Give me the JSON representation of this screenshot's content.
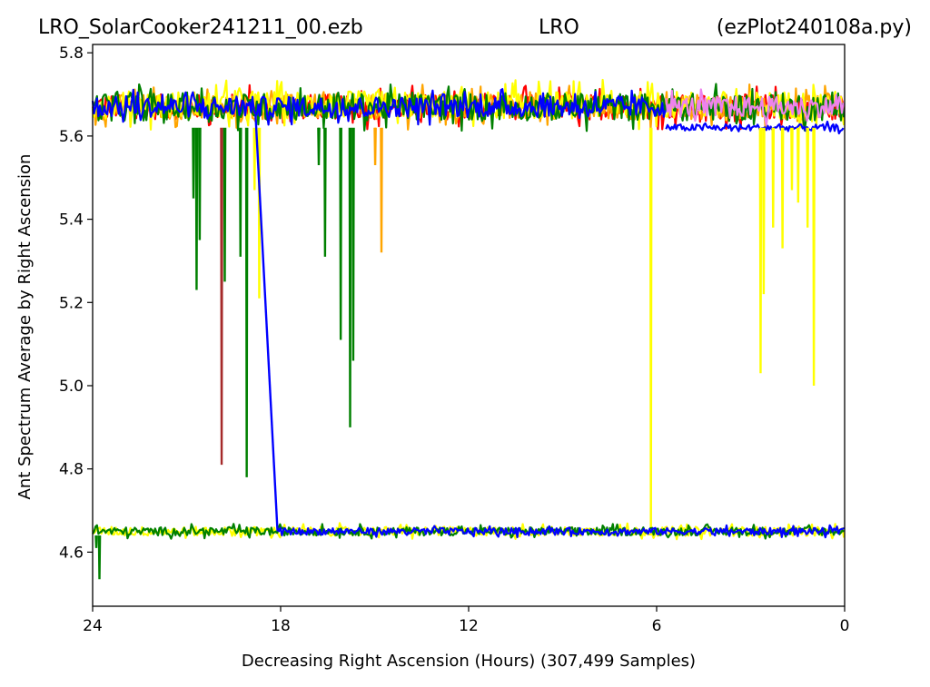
{
  "header": {
    "left": "LRO_SolarCooker241211_00.ezb",
    "center": "LRO",
    "right": "(ezPlot240108a.py)"
  },
  "chart_data": {
    "type": "line",
    "title": "",
    "xlabel": "Decreasing Right Ascension (Hours) (307,499 Samples)",
    "ylabel": "Ant Spectrum Average by Right Ascension",
    "xlim": [
      24,
      0
    ],
    "ylim": [
      4.47,
      5.82
    ],
    "x_ticks": [
      24,
      18,
      12,
      6,
      0
    ],
    "y_ticks": [
      4.6,
      4.8,
      5.0,
      5.2,
      5.4,
      5.6,
      5.8
    ],
    "y_tick_labels": [
      "4.6",
      "4.8",
      "5.0",
      "5.2",
      "5.4",
      "5.6",
      "5.8"
    ],
    "x_reversed": true,
    "grid": false,
    "legend": "none",
    "bands": [
      {
        "color": "#ff0000",
        "x_from": 24,
        "x_to": 0,
        "center": 5.67,
        "spread": 0.055
      },
      {
        "color": "#ffa500",
        "x_from": 24,
        "x_to": 0,
        "center": 5.67,
        "spread": 0.055
      },
      {
        "color": "#ffff00",
        "x_from": 24,
        "x_to": 0,
        "center": 5.675,
        "spread": 0.06
      },
      {
        "color": "#ffff00",
        "x_from": 24,
        "x_to": 0,
        "center": 4.65,
        "spread": 0.02
      },
      {
        "color": "#008000",
        "x_from": 24,
        "x_to": 0,
        "center": 5.67,
        "spread": 0.06
      },
      {
        "color": "#008000",
        "x_from": 24,
        "x_to": 0,
        "center": 4.65,
        "spread": 0.018
      },
      {
        "color": "#0000ff",
        "x_from": 24,
        "x_to": 5.7,
        "center": 5.67,
        "spread": 0.045
      },
      {
        "color": "#ee82ee",
        "x_from": 5.7,
        "x_to": 0,
        "center": 5.67,
        "spread": 0.045
      },
      {
        "color": "#0000ff",
        "x_from": 5.7,
        "x_to": 0,
        "center": 5.62,
        "spread": 0.015
      },
      {
        "color": "#0000ff",
        "x_from": 18.1,
        "x_to": 0,
        "center": 4.65,
        "spread": 0.015
      }
    ],
    "dips": [
      {
        "color": "#008000",
        "x": 20.7,
        "y_top": 5.62,
        "y_min": 5.23
      },
      {
        "color": "#008000",
        "x": 20.8,
        "y_top": 5.62,
        "y_min": 5.45
      },
      {
        "color": "#008000",
        "x": 20.6,
        "y_top": 5.62,
        "y_min": 5.35
      },
      {
        "color": "#a52a2a",
        "x": 19.9,
        "y_top": 5.62,
        "y_min": 4.81
      },
      {
        "color": "#008000",
        "x": 19.8,
        "y_top": 5.62,
        "y_min": 5.25
      },
      {
        "color": "#008000",
        "x": 19.3,
        "y_top": 5.62,
        "y_min": 5.31
      },
      {
        "color": "#008000",
        "x": 19.1,
        "y_top": 5.62,
        "y_min": 4.78
      },
      {
        "color": "#ffff00",
        "x": 18.7,
        "y_top": 5.62,
        "y_min": 5.21
      },
      {
        "color": "#ffff00",
        "x": 18.85,
        "y_top": 5.62,
        "y_min": 5.47
      },
      {
        "color": "#008000",
        "x": 16.8,
        "y_top": 5.62,
        "y_min": 5.53
      },
      {
        "color": "#008000",
        "x": 16.6,
        "y_top": 5.62,
        "y_min": 5.31
      },
      {
        "color": "#008000",
        "x": 16.1,
        "y_top": 5.62,
        "y_min": 5.11
      },
      {
        "color": "#008000",
        "x": 15.8,
        "y_top": 5.62,
        "y_min": 4.9
      },
      {
        "color": "#008000",
        "x": 15.7,
        "y_top": 5.62,
        "y_min": 5.06
      },
      {
        "color": "#ffa500",
        "x": 15.0,
        "y_top": 5.62,
        "y_min": 5.53
      },
      {
        "color": "#ffa500",
        "x": 14.8,
        "y_top": 5.62,
        "y_min": 5.32
      },
      {
        "color": "#ffff00",
        "x": 6.2,
        "y_top": 5.62,
        "y_min": 4.66
      },
      {
        "color": "#ffff00",
        "x": 2.7,
        "y_top": 5.62,
        "y_min": 5.03
      },
      {
        "color": "#ffff00",
        "x": 2.6,
        "y_top": 5.62,
        "y_min": 5.22
      },
      {
        "color": "#ffff00",
        "x": 2.3,
        "y_top": 5.62,
        "y_min": 5.38
      },
      {
        "color": "#ffff00",
        "x": 2.0,
        "y_top": 5.62,
        "y_min": 5.33
      },
      {
        "color": "#ffff00",
        "x": 1.7,
        "y_top": 5.62,
        "y_min": 5.47
      },
      {
        "color": "#ffff00",
        "x": 1.5,
        "y_top": 5.62,
        "y_min": 5.44
      },
      {
        "color": "#ffff00",
        "x": 1.2,
        "y_top": 5.62,
        "y_min": 5.38
      },
      {
        "color": "#ffff00",
        "x": 1.0,
        "y_top": 5.62,
        "y_min": 5.0
      },
      {
        "color": "#008000",
        "x": 23.8,
        "y_top": 4.64,
        "y_min": 4.535
      },
      {
        "color": "#008000",
        "x": 23.9,
        "y_top": 4.64,
        "y_min": 4.61
      }
    ],
    "connectors": [
      {
        "color": "#0000ff",
        "x1": 18.8,
        "y1": 5.65,
        "x2": 18.1,
        "y2": 4.65
      }
    ],
    "colors": {
      "red": "#ff0000",
      "orange": "#ffa500",
      "yellow": "#ffff00",
      "green": "#008000",
      "blue": "#0000ff",
      "violet": "#ee82ee",
      "brown": "#a52a2a"
    }
  }
}
